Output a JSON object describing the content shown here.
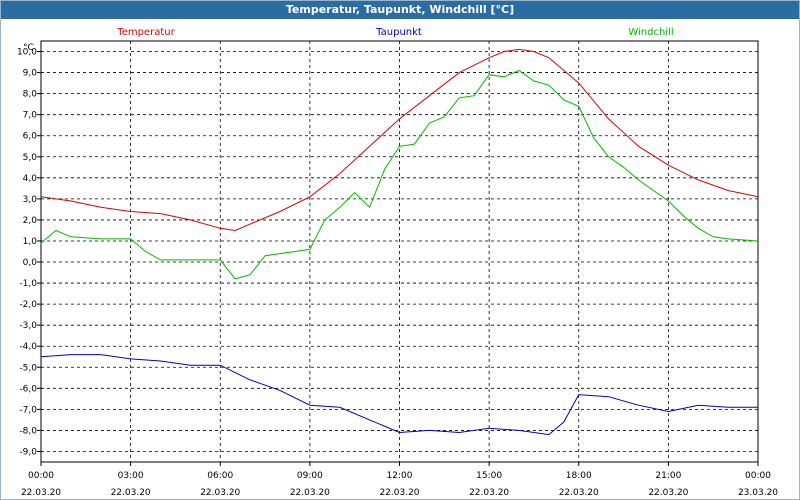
{
  "window": {
    "title": "Temperatur, Taupunkt, Windchill [°C]"
  },
  "colors": {
    "temperature": "#e00000",
    "dewpoint": "#0000cc",
    "windchill": "#00bb00",
    "titlebar": "#2b6ca3"
  },
  "chart_data": {
    "type": "line",
    "title": "Temperatur, Taupunkt, Windchill [°C]",
    "ylabel": "°C",
    "ylim": [
      -9.5,
      10.5
    ],
    "y_ticks": [
      "10,0",
      "9,0",
      "8,0",
      "7,0",
      "6,0",
      "5,0",
      "4,0",
      "3,0",
      "2,0",
      "1,0",
      "0,0",
      "-1,0",
      "-2,0",
      "-3,0",
      "-4,0",
      "-5,0",
      "-6,0",
      "-7,0",
      "-8,0",
      "-9,0"
    ],
    "x_ticks": [
      {
        "time": "00:00",
        "date": "22.03.20"
      },
      {
        "time": "03:00",
        "date": "22.03.20"
      },
      {
        "time": "06:00",
        "date": "22.03.20"
      },
      {
        "time": "09:00",
        "date": "22.03.20"
      },
      {
        "time": "12:00",
        "date": "22.03.20"
      },
      {
        "time": "15:00",
        "date": "22.03.20"
      },
      {
        "time": "18:00",
        "date": "22.03.20"
      },
      {
        "time": "21:00",
        "date": "22.03.20"
      },
      {
        "time": "00:00",
        "date": "23.03.20"
      }
    ],
    "grid": true,
    "series": [
      {
        "name": "Temperatur",
        "x": [
          "00:00",
          "01:00",
          "02:00",
          "03:00",
          "04:00",
          "05:00",
          "06:00",
          "06:30",
          "07:00",
          "08:00",
          "09:00",
          "10:00",
          "11:00",
          "12:00",
          "13:00",
          "14:00",
          "15:00",
          "15:30",
          "16:00",
          "16:30",
          "17:00",
          "18:00",
          "19:00",
          "20:00",
          "21:00",
          "22:00",
          "23:00",
          "24:00"
        ],
        "values": [
          3.1,
          2.9,
          2.6,
          2.4,
          2.3,
          2.0,
          1.6,
          1.5,
          1.8,
          2.4,
          3.1,
          4.2,
          5.5,
          6.8,
          7.9,
          9.0,
          9.7,
          10.0,
          10.1,
          10.0,
          9.7,
          8.5,
          6.8,
          5.5,
          4.6,
          3.9,
          3.4,
          3.1
        ]
      },
      {
        "name": "Taupunkt",
        "x": [
          "00:00",
          "01:00",
          "02:00",
          "03:00",
          "04:00",
          "05:00",
          "06:00",
          "07:00",
          "08:00",
          "09:00",
          "10:00",
          "11:00",
          "12:00",
          "13:00",
          "14:00",
          "15:00",
          "16:00",
          "17:00",
          "17:30",
          "18:00",
          "19:00",
          "20:00",
          "21:00",
          "22:00",
          "23:00",
          "24:00"
        ],
        "values": [
          -4.5,
          -4.4,
          -4.4,
          -4.6,
          -4.7,
          -4.9,
          -4.9,
          -5.6,
          -6.1,
          -6.8,
          -6.9,
          -7.5,
          -8.1,
          -8.0,
          -8.1,
          -7.9,
          -8.0,
          -8.2,
          -7.6,
          -6.3,
          -6.4,
          -6.8,
          -7.1,
          -6.8,
          -6.9,
          -6.9
        ]
      },
      {
        "name": "Windchill",
        "x": [
          "00:00",
          "00:30",
          "01:00",
          "02:00",
          "03:00",
          "03:30",
          "04:00",
          "05:00",
          "06:00",
          "06:30",
          "07:00",
          "07:30",
          "08:00",
          "09:00",
          "09:30",
          "10:00",
          "10:30",
          "11:00",
          "11:30",
          "12:00",
          "12:30",
          "13:00",
          "13:30",
          "14:00",
          "14:30",
          "15:00",
          "15:30",
          "16:00",
          "16:30",
          "17:00",
          "17:30",
          "18:00",
          "18:30",
          "19:00",
          "19:30",
          "20:00",
          "20:30",
          "21:00",
          "21:30",
          "22:00",
          "22:30",
          "23:00",
          "24:00"
        ],
        "values": [
          0.9,
          1.5,
          1.2,
          1.1,
          1.1,
          0.5,
          0.1,
          0.1,
          0.1,
          -0.8,
          -0.6,
          0.3,
          0.4,
          0.6,
          2.0,
          2.6,
          3.3,
          2.6,
          4.4,
          5.5,
          5.6,
          6.6,
          6.9,
          7.8,
          7.9,
          8.9,
          8.8,
          9.1,
          8.6,
          8.4,
          7.7,
          7.4,
          5.9,
          5.0,
          4.5,
          3.9,
          3.4,
          2.9,
          2.2,
          1.6,
          1.2,
          1.1,
          1.0
        ]
      }
    ]
  }
}
